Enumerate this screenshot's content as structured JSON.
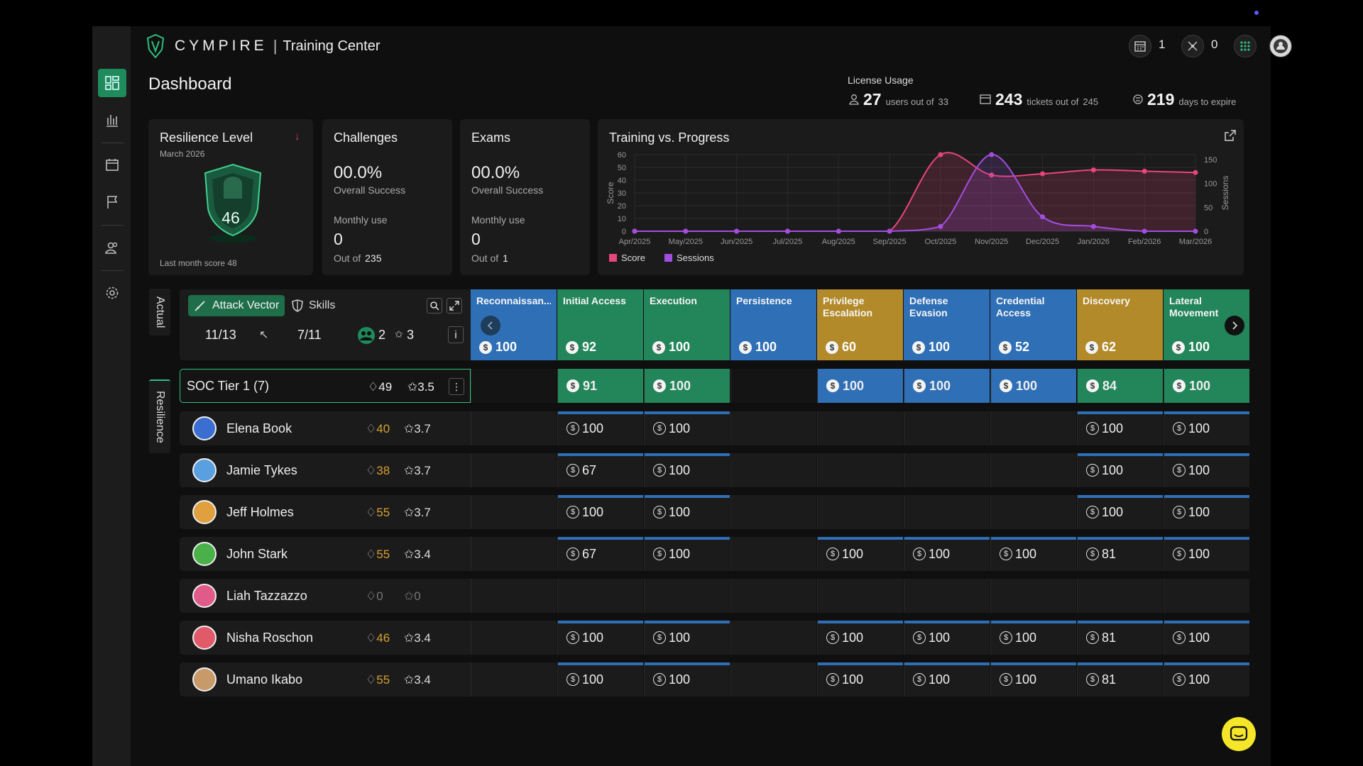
{
  "brand": {
    "logo_text": "CYMPIRE",
    "app_name": "Training Center"
  },
  "topbar": {
    "calendar_count": "1",
    "network_count": "0"
  },
  "page_title": "Dashboard",
  "license": {
    "label": "License Usage",
    "users_value": "27",
    "users_text": "users out of",
    "users_total": "33",
    "tickets_value": "243",
    "tickets_text": "tickets out of",
    "tickets_total": "245",
    "days_value": "219",
    "days_text": "days to expire"
  },
  "resilience": {
    "title": "Resilience Level",
    "date": "March 2026",
    "level": "46",
    "last_month": "Last month score 48"
  },
  "challenges": {
    "title": "Challenges",
    "pct": "00.0%",
    "pct_label": "Overall Success",
    "monthly_label": "Monthly use",
    "monthly_value": "0",
    "out_of_label": "Out of",
    "out_of_value": "235"
  },
  "exams": {
    "title": "Exams",
    "pct": "00.0%",
    "pct_label": "Overall Success",
    "monthly_label": "Monthly use",
    "monthly_value": "0",
    "out_of_label": "Out of",
    "out_of_value": "1"
  },
  "chart_data": {
    "type": "line",
    "title": "Training vs. Progress",
    "ylabel": "Score",
    "y2label": "Sessions",
    "x": [
      "Apr/2025",
      "May/2025",
      "Jun/2025",
      "Jul/2025",
      "Aug/2025",
      "Sep/2025",
      "Oct/2025",
      "Nov/2025",
      "Dec/2025",
      "Jan/2026",
      "Feb/2026",
      "Mar/2026"
    ],
    "ylim": [
      0,
      60
    ],
    "y2lim": [
      0,
      160
    ],
    "yticks": [
      0,
      10,
      20,
      30,
      40,
      50,
      60
    ],
    "y2ticks": [
      0,
      50,
      100,
      150
    ],
    "grid": true,
    "legend": "bottom-left",
    "series": [
      {
        "name": "Score",
        "axis": "left",
        "color": "#e8457e",
        "values": [
          0,
          0,
          0,
          0,
          0,
          0,
          60,
          44,
          45,
          48,
          47,
          46
        ]
      },
      {
        "name": "Sessions",
        "axis": "right",
        "color": "#a24ee0",
        "values": [
          0,
          0,
          0,
          0,
          0,
          0,
          10,
          160,
          30,
          10,
          0,
          0
        ]
      }
    ]
  },
  "tabs": {
    "actual": "Actual",
    "resilience": "Resilience"
  },
  "controls": {
    "attack_vector": "Attack Vector",
    "skills": "Skills",
    "ratio1": "11/13",
    "ratio2": "7/11",
    "groups": "2",
    "skills_count": "3",
    "info": "i"
  },
  "columns": [
    {
      "name": "Reconnaissan...",
      "score": "100",
      "color": "#2f6fb6"
    },
    {
      "name": "Initial Access",
      "score": "92",
      "color": "#23855a"
    },
    {
      "name": "Execution",
      "score": "100",
      "color": "#23855a"
    },
    {
      "name": "Persistence",
      "score": "100",
      "color": "#2f6fb6"
    },
    {
      "name": "Privilege Escalation",
      "score": "60",
      "color": "#b38a2a"
    },
    {
      "name": "Defense Evasion",
      "score": "100",
      "color": "#2f6fb6"
    },
    {
      "name": "Credential Access",
      "score": "52",
      "color": "#2f6fb6"
    },
    {
      "name": "Discovery",
      "score": "62",
      "color": "#b38a2a"
    },
    {
      "name": "Lateral Movement",
      "score": "100",
      "color": "#23855a"
    }
  ],
  "group": {
    "name": "SOC Tier 1 (7)",
    "shield": "49",
    "skill": "3.5",
    "cells": [
      "",
      "91",
      "100",
      "",
      "100",
      "100",
      "100",
      "84",
      "100"
    ],
    "cell_colors": [
      "",
      "#23855a",
      "#23855a",
      "",
      "#2f6fb6",
      "#2f6fb6",
      "#2f6fb6",
      "#23855a",
      "#23855a"
    ]
  },
  "users": [
    {
      "name": "Elena Book",
      "shield": "40",
      "skill": "3.7",
      "avatar": "#3a6fd1",
      "cells": [
        "",
        "100",
        "100",
        "",
        "",
        "",
        "",
        "100",
        "100"
      ]
    },
    {
      "name": "Jamie Tykes",
      "shield": "38",
      "skill": "3.7",
      "avatar": "#5aa0e0",
      "cells": [
        "",
        "67",
        "100",
        "",
        "",
        "",
        "",
        "100",
        "100"
      ]
    },
    {
      "name": "Jeff Holmes",
      "shield": "55",
      "skill": "3.7",
      "avatar": "#e0a040",
      "cells": [
        "",
        "100",
        "100",
        "",
        "",
        "",
        "",
        "100",
        "100"
      ]
    },
    {
      "name": "John Stark",
      "shield": "55",
      "skill": "3.4",
      "avatar": "#4ab04a",
      "cells": [
        "",
        "67",
        "100",
        "",
        "100",
        "100",
        "100",
        "81",
        "100"
      ]
    },
    {
      "name": "Liah Tazzazzo",
      "shield": "0",
      "skill": "0",
      "avatar": "#e05a8a",
      "cells": [
        "",
        "",
        "",
        "",
        "",
        "",
        "",
        "",
        ""
      ]
    },
    {
      "name": "Nisha Roschon",
      "shield": "46",
      "skill": "3.4",
      "avatar": "#e05a6a",
      "cells": [
        "",
        "100",
        "100",
        "",
        "100",
        "100",
        "100",
        "81",
        "100"
      ]
    },
    {
      "name": "Umano Ikabo",
      "shield": "55",
      "skill": "3.4",
      "avatar": "#c89a6a",
      "cells": [
        "",
        "100",
        "100",
        "",
        "100",
        "100",
        "100",
        "81",
        "100"
      ]
    }
  ]
}
